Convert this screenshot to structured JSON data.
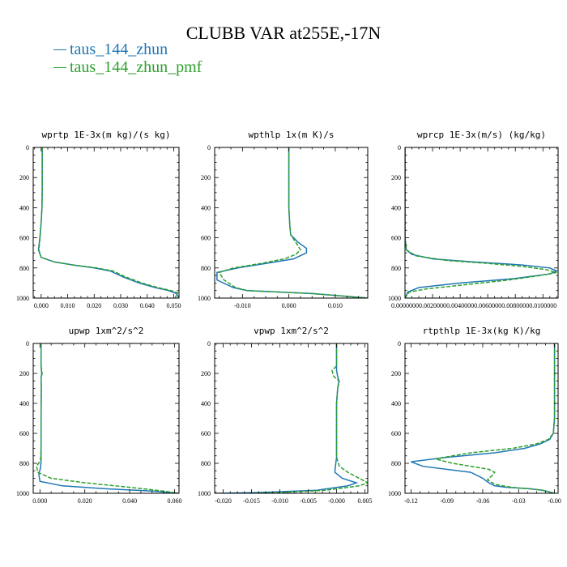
{
  "title": "CLUBB VAR at255E,-17N",
  "legend": [
    {
      "label": "taus_144_zhun",
      "color": "#1f77b4",
      "dash": false
    },
    {
      "label": "taus_144_zhun_pmf",
      "color": "#2ca02c",
      "dash": true
    }
  ],
  "chart_data": [
    {
      "type": "line",
      "title": "wprtp  1E-3x(m kg)/(s kg)",
      "xlim": [
        -0.003,
        0.052
      ],
      "ylim": [
        1000,
        0
      ],
      "xticks": [
        0.0,
        0.01,
        0.02,
        0.03,
        0.04,
        0.05
      ],
      "xticklabels": [
        "0.000",
        "0.010",
        "0.020",
        "0.030",
        "0.040",
        "0.050"
      ],
      "yticks": [
        0,
        200,
        400,
        600,
        800,
        1000
      ],
      "yticklabels": [
        "0",
        "200",
        "400",
        "600",
        "800",
        "1000"
      ],
      "series": [
        {
          "name": "taus_144_zhun",
          "x": [
            0.0004,
            0.0004,
            0.0004,
            0.0004,
            0.0003,
            0.0,
            -0.0005,
            -0.001,
            0.0,
            0.005,
            0.012,
            0.02,
            0.026,
            0.031,
            0.037,
            0.043,
            0.048,
            0.051,
            0.052
          ],
          "y": [
            0,
            100,
            200,
            300,
            400,
            500,
            600,
            680,
            730,
            760,
            780,
            800,
            820,
            860,
            900,
            930,
            950,
            970,
            1000
          ]
        },
        {
          "name": "taus_144_zhun_pmf",
          "x": [
            0.0004,
            0.0004,
            0.0004,
            0.0004,
            0.0003,
            0.0,
            -0.0004,
            -0.0009,
            0.0,
            0.005,
            0.012,
            0.021,
            0.027,
            0.032,
            0.038,
            0.044,
            0.049,
            0.0515,
            0.0505
          ],
          "y": [
            0,
            100,
            200,
            300,
            400,
            500,
            600,
            680,
            730,
            760,
            780,
            800,
            820,
            860,
            900,
            930,
            950,
            965,
            1000
          ]
        }
      ]
    },
    {
      "type": "line",
      "title": "wpthlp  1x(m K)/s",
      "xlim": [
        -0.016,
        0.017
      ],
      "ylim": [
        1000,
        0
      ],
      "xticks": [
        -0.01,
        0.0,
        0.01
      ],
      "xticklabels": [
        "-0.010",
        "0.000",
        "0.010"
      ],
      "yticks": [
        0,
        200,
        400,
        600,
        800,
        1000
      ],
      "yticklabels": [
        "0",
        "200",
        "400",
        "600",
        "800",
        "1000"
      ],
      "series": [
        {
          "name": "taus_144_zhun",
          "x": [
            0.0,
            0.0,
            0.0,
            0.0002,
            0.0004,
            0.002,
            0.0038,
            0.0038,
            0.001,
            -0.005,
            -0.011,
            -0.0155,
            -0.0155,
            -0.012,
            -0.009,
            0.005,
            0.017
          ],
          "y": [
            0,
            200,
            400,
            520,
            580,
            630,
            670,
            700,
            740,
            770,
            800,
            830,
            880,
            930,
            950,
            970,
            1000
          ]
        },
        {
          "name": "taus_144_zhun_pmf",
          "x": [
            0.0,
            0.0,
            0.0,
            0.0002,
            0.0004,
            0.0015,
            0.0025,
            0.0015,
            -0.001,
            -0.006,
            -0.012,
            -0.015,
            -0.014,
            -0.0115,
            -0.009,
            0.005,
            0.017
          ],
          "y": [
            0,
            200,
            400,
            520,
            580,
            630,
            680,
            710,
            740,
            770,
            800,
            830,
            880,
            930,
            950,
            970,
            1000
          ]
        }
      ]
    },
    {
      "type": "line",
      "title": "wprcp  1E-3x(m/s) (kg/kg)",
      "xlim": [
        0.0,
        0.0111
      ],
      "ylim": [
        1000,
        0
      ],
      "xticks": [
        0.0,
        0.002,
        0.004,
        0.006,
        0.008,
        0.01
      ],
      "xticklabels": [
        "0.0000000",
        "0.0020000",
        "0.0040000",
        "0.0060000",
        "0.0080000",
        "0.0100000"
      ],
      "yticks": [
        0,
        200,
        400,
        600,
        800,
        1000
      ],
      "yticklabels": [
        "0",
        "200",
        "400",
        "600",
        "800",
        "1000"
      ],
      "series": [
        {
          "name": "taus_144_zhun",
          "x": [
            0.0,
            0.0,
            0.0001,
            0.0005,
            0.002,
            0.005,
            0.0085,
            0.0105,
            0.011,
            0.0105,
            0.008,
            0.004,
            0.001,
            0.0002,
            0.0
          ],
          "y": [
            0,
            600,
            680,
            710,
            740,
            760,
            780,
            800,
            820,
            840,
            870,
            900,
            930,
            960,
            1000
          ]
        },
        {
          "name": "taus_144_zhun_pmf",
          "x": [
            0.0,
            0.0,
            0.0001,
            0.0008,
            0.003,
            0.006,
            0.0085,
            0.0102,
            0.011,
            0.0098,
            0.0075,
            0.0045,
            0.0015,
            0.0003,
            0.0
          ],
          "y": [
            0,
            600,
            680,
            720,
            750,
            770,
            790,
            810,
            830,
            850,
            880,
            910,
            940,
            960,
            1000
          ]
        }
      ]
    },
    {
      "type": "line",
      "title": "upwp  1xm^2/s^2",
      "xlim": [
        -0.003,
        0.062
      ],
      "ylim": [
        1000,
        0
      ],
      "xticks": [
        0.0,
        0.02,
        0.04,
        0.06
      ],
      "xticklabels": [
        "0.000",
        "0.020",
        "0.040",
        "0.060"
      ],
      "yticks": [
        0,
        200,
        400,
        600,
        800,
        1000
      ],
      "yticklabels": [
        "0",
        "200",
        "400",
        "600",
        "800",
        "1000"
      ],
      "series": [
        {
          "name": "taus_144_zhun",
          "x": [
            0.0005,
            0.0005,
            0.0008,
            0.0005,
            0.0006,
            0.0005,
            0.0005,
            0.0005,
            0.0003,
            -0.0005,
            0.0,
            0.01,
            0.03,
            0.05,
            0.062
          ],
          "y": [
            0,
            150,
            200,
            230,
            300,
            500,
            700,
            780,
            830,
            870,
            920,
            950,
            970,
            985,
            1000
          ]
        },
        {
          "name": "taus_144_zhun_pmf",
          "x": [
            0.0005,
            0.0005,
            0.001,
            0.0005,
            0.0006,
            0.0005,
            0.0005,
            0.0003,
            -0.0015,
            -0.001,
            0.005,
            0.02,
            0.04,
            0.055,
            0.062
          ],
          "y": [
            0,
            150,
            200,
            230,
            300,
            500,
            700,
            780,
            820,
            860,
            900,
            930,
            960,
            985,
            1000
          ]
        }
      ]
    },
    {
      "type": "line",
      "title": "vpwp  1xm^2/s^2",
      "xlim": [
        -0.0215,
        0.0055
      ],
      "ylim": [
        1000,
        0
      ],
      "xticks": [
        -0.02,
        -0.015,
        -0.01,
        -0.005,
        0.0,
        0.005
      ],
      "xticklabels": [
        "-0.020",
        "-0.015",
        "-0.010",
        "-0.005",
        "-0.000",
        "0.005"
      ],
      "yticks": [
        0,
        200,
        400,
        600,
        800,
        1000
      ],
      "yticklabels": [
        "0",
        "200",
        "400",
        "600",
        "800",
        "1000"
      ],
      "series": [
        {
          "name": "taus_144_zhun",
          "x": [
            0.0,
            0.0,
            0.0,
            0.0002,
            0.0004,
            0.0002,
            0.0,
            0.0,
            0.0,
            -0.0002,
            -0.0003,
            0.001,
            0.0035,
            0.002,
            -0.0035,
            -0.014,
            -0.021
          ],
          "y": [
            0,
            150,
            180,
            220,
            250,
            300,
            400,
            600,
            760,
            820,
            860,
            900,
            930,
            950,
            980,
            995,
            1000
          ]
        },
        {
          "name": "taus_144_zhun_pmf",
          "x": [
            0.0,
            0.0,
            -0.0008,
            -0.0005,
            0.0005,
            0.0002,
            0.0,
            0.0,
            0.0,
            0.0005,
            0.002,
            0.004,
            0.0055,
            0.004,
            -0.002,
            -0.01,
            -0.015
          ],
          "y": [
            0,
            150,
            180,
            220,
            250,
            300,
            400,
            600,
            760,
            820,
            860,
            900,
            930,
            950,
            980,
            995,
            1000
          ]
        }
      ]
    },
    {
      "type": "line",
      "title": "rtpthlp  1E-3x(kg K)/kg",
      "xlim": [
        -0.125,
        0.003
      ],
      "ylim": [
        1000,
        0
      ],
      "xticks": [
        -0.12,
        -0.09,
        -0.06,
        -0.03,
        0.0
      ],
      "xticklabels": [
        "-0.12",
        "-0.09",
        "-0.06",
        "-0.03",
        "-0.00"
      ],
      "yticks": [
        0,
        200,
        400,
        600,
        800,
        1000
      ],
      "yticklabels": [
        "0",
        "200",
        "400",
        "600",
        "800",
        "1000"
      ],
      "series": [
        {
          "name": "taus_144_zhun",
          "x": [
            0.0,
            0.0,
            -0.001,
            -0.004,
            -0.012,
            -0.025,
            -0.05,
            -0.09,
            -0.12,
            -0.11,
            -0.07,
            -0.06,
            -0.055,
            -0.05,
            -0.04,
            -0.03,
            -0.02,
            -0.01,
            0.0
          ],
          "y": [
            0,
            500,
            600,
            640,
            670,
            700,
            730,
            760,
            790,
            820,
            860,
            900,
            930,
            950,
            960,
            965,
            970,
            980,
            1000
          ]
        },
        {
          "name": "taus_144_zhun_pmf",
          "x": [
            0.0,
            0.0,
            -0.001,
            -0.005,
            -0.015,
            -0.035,
            -0.07,
            -0.1,
            -0.085,
            -0.055,
            -0.05,
            -0.052,
            -0.056,
            -0.05,
            -0.04,
            -0.03,
            -0.02,
            -0.01,
            0.0
          ],
          "y": [
            0,
            500,
            600,
            640,
            670,
            700,
            730,
            770,
            800,
            840,
            860,
            880,
            910,
            940,
            955,
            965,
            970,
            980,
            1000
          ]
        }
      ]
    }
  ]
}
